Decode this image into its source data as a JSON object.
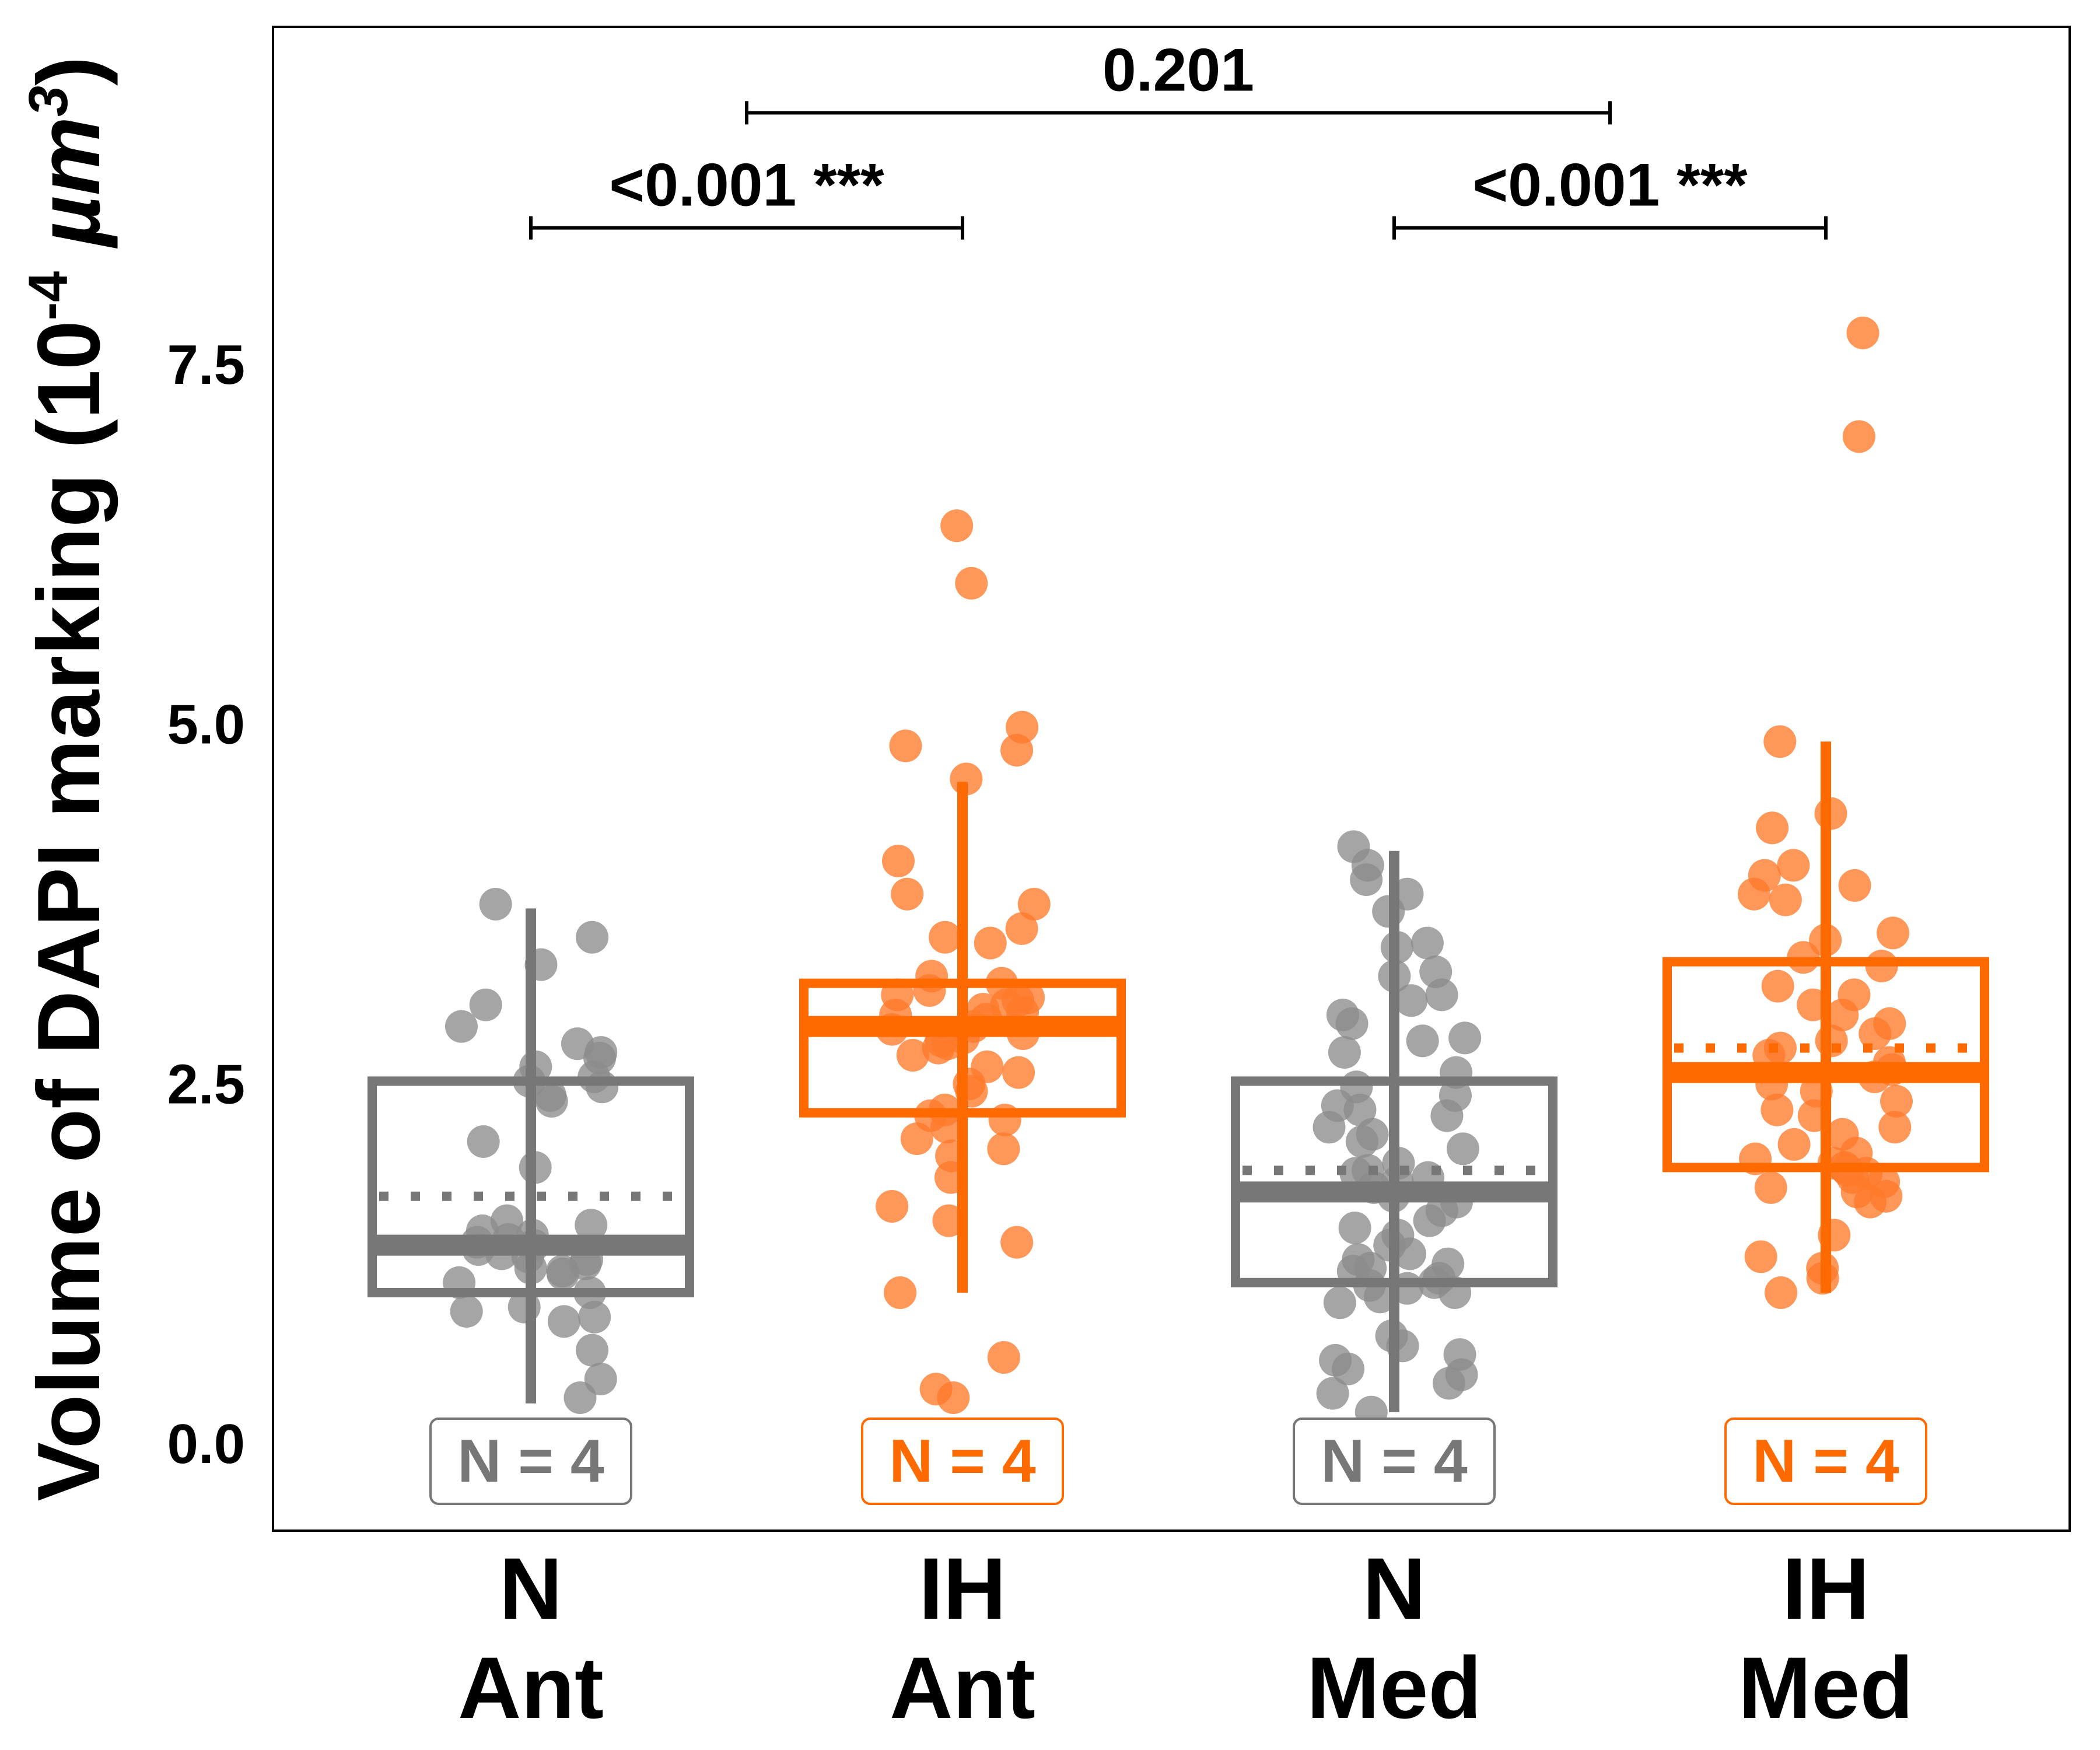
{
  "chart_data": {
    "type": "boxplot",
    "title": "",
    "ylabel": "Volume of DAPI marking (10",
    "ylabel_exp1": "-4",
    "ylabel_unit": " µm",
    "ylabel_exp2": "3",
    "ylabel_tail": ")",
    "ylim": [
      -0.65,
      10.15
    ],
    "yticks": [
      {
        "value": 0.0,
        "label": "0.0"
      },
      {
        "value": 2.5,
        "label": "2.5"
      },
      {
        "value": 5.0,
        "label": "5.0"
      },
      {
        "value": 7.5,
        "label": "7.5"
      }
    ],
    "grid": false,
    "colors": {
      "N": "#777777",
      "IH": "#ff6a00",
      "points_N": "#8c8c8c",
      "points_IH": "#ff7a2a"
    },
    "groups": [
      {
        "cond": "N",
        "region": "Ant",
        "color": "#777777",
        "whisker_low": 0.28,
        "q1": 1.05,
        "median": 1.38,
        "mean": 1.72,
        "q3": 2.52,
        "whisker_high": 3.72,
        "n_label": "N = 4",
        "points": [
          3.75,
          3.52,
          3.33,
          3.05,
          2.9,
          2.78,
          2.72,
          2.68,
          2.62,
          2.55,
          2.52,
          2.48,
          2.42,
          2.38,
          2.1,
          1.92,
          1.55,
          1.52,
          1.48,
          1.45,
          1.42,
          1.4,
          1.38,
          1.35,
          1.32,
          1.3,
          1.28,
          1.25,
          1.22,
          1.2,
          1.18,
          1.12,
          1.05,
          0.95,
          0.92,
          0.88,
          0.85,
          0.65,
          0.45,
          0.32
        ]
      },
      {
        "cond": "IH",
        "region": "Ant",
        "color": "#ff6a00",
        "whisker_low": 1.05,
        "q1": 2.3,
        "median": 2.9,
        "mean": 2.9,
        "q3": 3.2,
        "whisker_high": 4.6,
        "n_label": "N = 4",
        "points": [
          6.38,
          5.98,
          4.98,
          4.85,
          4.82,
          4.62,
          4.05,
          3.82,
          3.75,
          3.58,
          3.52,
          3.48,
          3.25,
          3.2,
          3.15,
          3.12,
          3.1,
          3.08,
          3.05,
          3.02,
          3.0,
          2.98,
          2.95,
          2.9,
          2.88,
          2.85,
          2.82,
          2.8,
          2.78,
          2.75,
          2.7,
          2.62,
          2.58,
          2.5,
          2.45,
          2.32,
          2.28,
          2.25,
          2.2,
          2.12,
          2.05,
          2.0,
          1.85,
          1.65,
          1.55,
          1.4,
          1.05,
          0.6,
          0.38,
          0.32
        ]
      },
      {
        "cond": "N",
        "region": "Med",
        "color": "#777777",
        "whisker_low": 0.22,
        "q1": 1.12,
        "median": 1.75,
        "mean": 1.9,
        "q3": 2.52,
        "whisker_high": 4.12,
        "n_label": "N = 4",
        "points": [
          4.15,
          4.02,
          3.92,
          3.82,
          3.7,
          3.48,
          3.45,
          3.28,
          3.25,
          3.12,
          3.08,
          2.98,
          2.92,
          2.82,
          2.8,
          2.72,
          2.58,
          2.48,
          2.42,
          2.35,
          2.32,
          2.28,
          2.2,
          2.15,
          2.1,
          2.05,
          1.95,
          1.9,
          1.88,
          1.85,
          1.82,
          1.78,
          1.72,
          1.68,
          1.62,
          1.55,
          1.5,
          1.45,
          1.38,
          1.32,
          1.28,
          1.25,
          1.22,
          1.2,
          1.15,
          1.12,
          1.1,
          1.08,
          1.05,
          1.02,
          0.98,
          0.75,
          0.68,
          0.62,
          0.58,
          0.52,
          0.48,
          0.42,
          0.35,
          0.22
        ]
      },
      {
        "cond": "IH",
        "region": "Med",
        "color": "#ff6a00",
        "whisker_low": 1.05,
        "q1": 1.92,
        "median": 2.58,
        "mean": 2.75,
        "q3": 3.35,
        "whisker_high": 4.88,
        "n_label": "N = 4",
        "points": [
          7.72,
          7.0,
          4.88,
          4.38,
          4.28,
          4.02,
          3.95,
          3.88,
          3.82,
          3.78,
          3.55,
          3.5,
          3.38,
          3.32,
          3.18,
          3.12,
          3.05,
          2.98,
          2.92,
          2.85,
          2.8,
          2.75,
          2.7,
          2.65,
          2.6,
          2.55,
          2.5,
          2.45,
          2.38,
          2.32,
          2.28,
          2.2,
          2.15,
          2.08,
          2.02,
          1.98,
          1.95,
          1.92,
          1.9,
          1.88,
          1.85,
          1.82,
          1.78,
          1.75,
          1.72,
          1.68,
          1.45,
          1.3,
          1.22,
          1.15,
          1.05
        ]
      }
    ],
    "comparisons": [
      {
        "from": 0,
        "to": 1,
        "label": "<0.001 ***",
        "level": 8.45
      },
      {
        "from": 2,
        "to": 3,
        "label": "<0.001 ***",
        "level": 8.45
      },
      {
        "from": 0.5,
        "to": 2.5,
        "label": "0.201",
        "level": 9.25
      }
    ]
  }
}
